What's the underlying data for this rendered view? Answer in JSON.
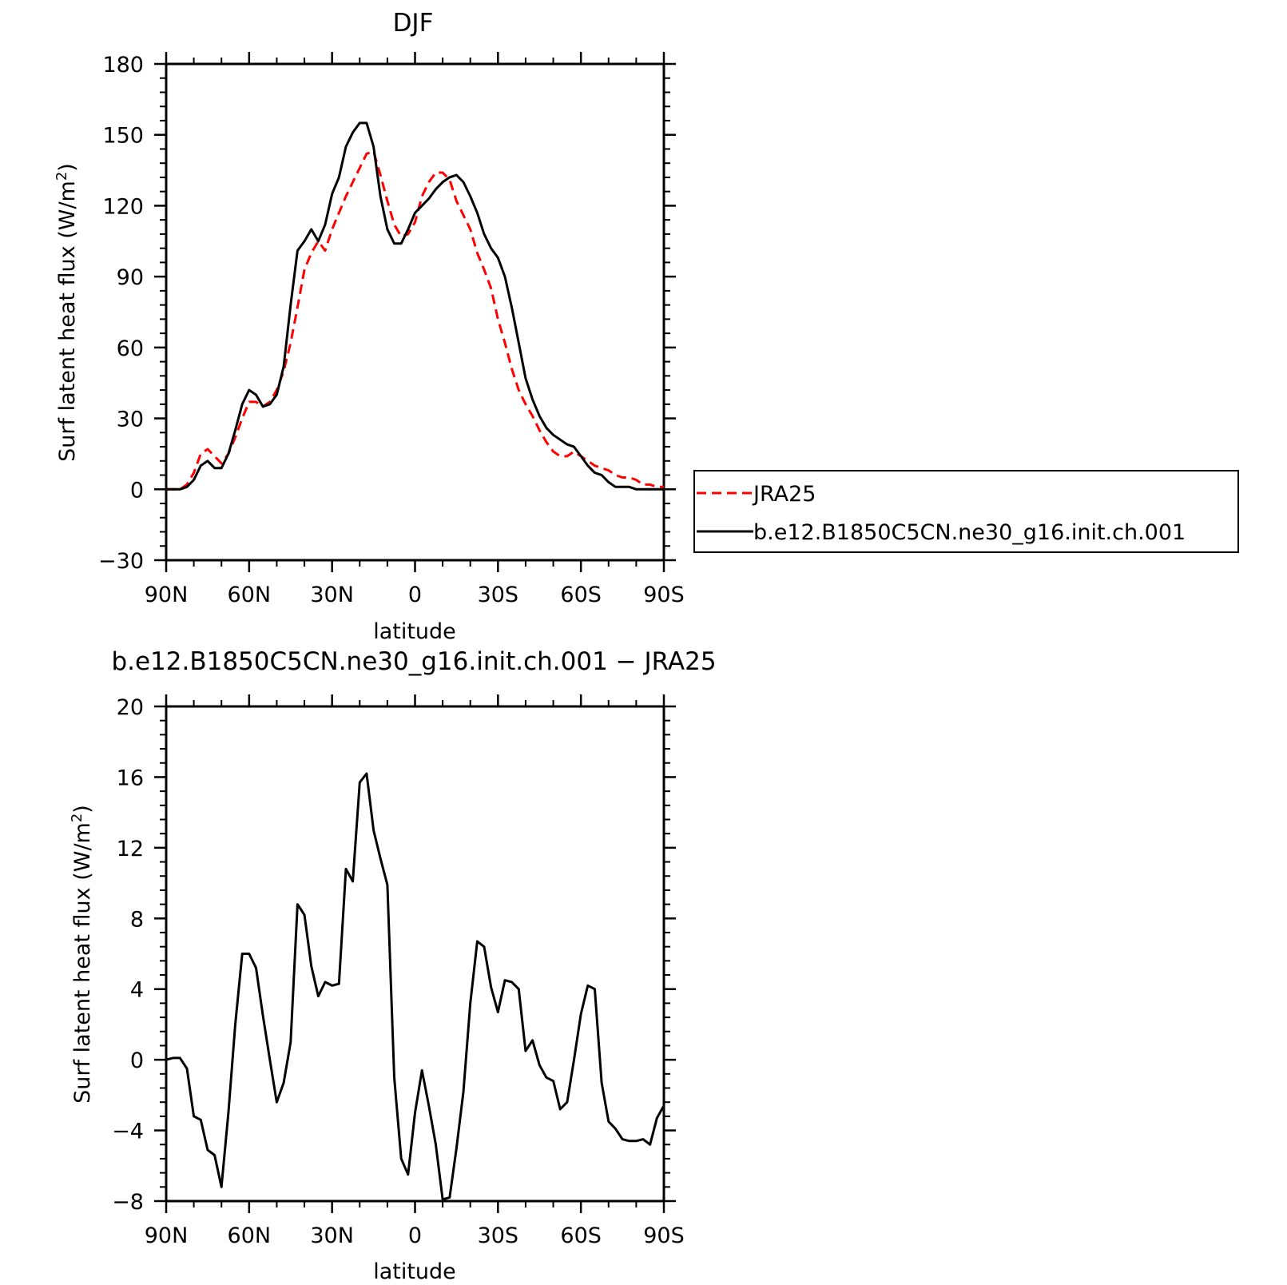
{
  "chart_data": [
    {
      "type": "line",
      "title": "DJF",
      "xlabel": "latitude",
      "ylabel": "Surf latent heat flux (W/m²)",
      "ylabel_main": "Surf latent heat flux (W/m",
      "ylabel_sup": "2",
      "ylabel_close": ")",
      "xlim": [
        90,
        -90
      ],
      "ylim": [
        -30,
        180
      ],
      "x_ticks": [
        90,
        60,
        30,
        0,
        -30,
        -60,
        -90
      ],
      "x_tick_labels": [
        "90N",
        "60N",
        "30N",
        "0",
        "30S",
        "60S",
        "90S"
      ],
      "y_ticks": [
        -30,
        0,
        30,
        60,
        90,
        120,
        150,
        180
      ],
      "y_tick_labels": [
        "−30",
        "0",
        "30",
        "60",
        "90",
        "120",
        "150",
        "180"
      ],
      "legend_position": "right",
      "series": [
        {
          "name": "JRA25",
          "color": "#ff0000",
          "style": "dashed",
          "x": [
            90,
            85,
            82.5,
            80,
            77.5,
            75,
            72.5,
            70,
            67.5,
            65,
            62.5,
            60,
            57.5,
            55,
            52.5,
            50,
            47.5,
            45,
            42.5,
            40,
            37.5,
            35,
            32.5,
            30,
            27.5,
            25,
            22.5,
            20,
            17.5,
            15,
            12.5,
            10,
            7.5,
            5,
            2.5,
            0,
            -2.5,
            -5,
            -7.5,
            -10,
            -12.5,
            -15,
            -17.5,
            -20,
            -22.5,
            -25,
            -27.5,
            -30,
            -32.5,
            -35,
            -37.5,
            -40,
            -42.5,
            -45,
            -47.5,
            -50,
            -52.5,
            -55,
            -57.5,
            -60,
            -62.5,
            -65,
            -67.5,
            -70,
            -72.5,
            -75,
            -77.5,
            -80,
            -82.5,
            -85,
            -87.5,
            -90
          ],
          "values": [
            0,
            0,
            2,
            7,
            15,
            17,
            14,
            11,
            15,
            22,
            30,
            37,
            37,
            35,
            37,
            42,
            50,
            62,
            77,
            93,
            100,
            105,
            101,
            110,
            117,
            124,
            130,
            136,
            142,
            143,
            133,
            122,
            112,
            107,
            108,
            113,
            124,
            130,
            134,
            134,
            131,
            122,
            116,
            110,
            100,
            93,
            85,
            72,
            62,
            51,
            42,
            36,
            31,
            25,
            20,
            16,
            14,
            14,
            16,
            14,
            12,
            10,
            9,
            8,
            6,
            5,
            5,
            4,
            2,
            2,
            1,
            1
          ]
        },
        {
          "name": "b.e12.B1850C5CN.ne30_g16.init.ch.001",
          "color": "#000000",
          "style": "solid",
          "x": [
            90,
            85,
            82.5,
            80,
            77.5,
            75,
            72.5,
            70,
            67.5,
            65,
            62.5,
            60,
            57.5,
            55,
            52.5,
            50,
            47.5,
            45,
            42.5,
            40,
            37.5,
            35,
            32.5,
            30,
            27.5,
            25,
            22.5,
            20,
            17.5,
            15,
            12.5,
            10,
            7.5,
            5,
            2.5,
            0,
            -2.5,
            -5,
            -7.5,
            -10,
            -12.5,
            -15,
            -17.5,
            -20,
            -22.5,
            -25,
            -27.5,
            -30,
            -32.5,
            -35,
            -37.5,
            -40,
            -42.5,
            -45,
            -47.5,
            -50,
            -52.5,
            -55,
            -57.5,
            -60,
            -62.5,
            -65,
            -67.5,
            -70,
            -72.5,
            -75,
            -77.5,
            -80,
            -82.5,
            -85,
            -87.5,
            -90
          ],
          "values": [
            0,
            0,
            1,
            4,
            10,
            12,
            9,
            9,
            15,
            25,
            36,
            42,
            40,
            35,
            36,
            40,
            52,
            78,
            101,
            105,
            110,
            105,
            112,
            125,
            132,
            145,
            151,
            155,
            155,
            145,
            124,
            110,
            104,
            104,
            110,
            117,
            120,
            123,
            127,
            130,
            132,
            133,
            130,
            124,
            117,
            108,
            102,
            98,
            90,
            77,
            62,
            47,
            38,
            31,
            26,
            23,
            21,
            19,
            18,
            14,
            10,
            7,
            6,
            3,
            1,
            1,
            1,
            0,
            0,
            0,
            0,
            0
          ]
        }
      ]
    },
    {
      "type": "line",
      "title": "b.e12.B1850C5CN.ne30_g16.init.ch.001 − JRA25",
      "xlabel": "latitude",
      "ylabel": "Surf latent heat flux (W/m²)",
      "ylabel_main": "Surf latent heat flux (W/m",
      "ylabel_sup": "2",
      "ylabel_close": ")",
      "xlim": [
        90,
        -90
      ],
      "ylim": [
        -8,
        20
      ],
      "x_ticks": [
        90,
        60,
        30,
        0,
        -30,
        -60,
        -90
      ],
      "x_tick_labels": [
        "90N",
        "60N",
        "30N",
        "0",
        "30S",
        "60S",
        "90S"
      ],
      "y_ticks": [
        -8,
        -4,
        0,
        4,
        8,
        12,
        16,
        20
      ],
      "y_tick_labels": [
        "−8",
        "−4",
        "0",
        "4",
        "8",
        "12",
        "16",
        "20"
      ],
      "series": [
        {
          "color": "#000000",
          "style": "solid",
          "x": [
            90,
            87.5,
            85,
            82.5,
            80,
            77.5,
            75,
            72.5,
            70,
            67.5,
            65,
            62.5,
            60,
            57.5,
            55,
            52.5,
            50,
            47.5,
            45,
            42.5,
            40,
            37.5,
            35,
            32.5,
            30,
            27.5,
            25,
            22.5,
            20,
            17.5,
            15,
            12.5,
            10,
            7.5,
            5,
            2.5,
            0,
            -2.5,
            -5,
            -7.5,
            -10,
            -12.5,
            -15,
            -17.5,
            -20,
            -22.5,
            -25,
            -27.5,
            -30,
            -32.5,
            -35,
            -37.5,
            -40,
            -42.5,
            -45,
            -47.5,
            -50,
            -52.5,
            -55,
            -57.5,
            -60,
            -62.5,
            -65,
            -67.5,
            -70,
            -72.5,
            -75,
            -77.5,
            -80,
            -82.5,
            -85,
            -87.5,
            -90
          ],
          "values": [
            0,
            0.1,
            0.1,
            -0.5,
            -3.2,
            -3.4,
            -5.1,
            -5.4,
            -7.2,
            -3,
            2,
            6,
            6,
            5.2,
            2.5,
            0,
            -2.4,
            -1.3,
            1,
            8.8,
            8.2,
            5.3,
            3.6,
            4.4,
            4.2,
            4.3,
            10.8,
            10.1,
            15.7,
            16.2,
            13,
            11.4,
            9.9,
            -1,
            -5.6,
            -6.5,
            -3,
            -0.6,
            -2.6,
            -4.8,
            -7.9,
            -7.8,
            -5,
            -1.8,
            3.2,
            6.7,
            6.4,
            4.1,
            2.7,
            4.5,
            4.4,
            4,
            0.5,
            1.1,
            -0.3,
            -1,
            -1.2,
            -2.8,
            -2.4,
            0,
            2.6,
            4.2,
            4,
            -1.3,
            -3.5,
            -3.9,
            -4.5,
            -4.6,
            -4.6,
            -4.5,
            -4.8,
            -3.3,
            -2.6
          ]
        }
      ]
    }
  ]
}
